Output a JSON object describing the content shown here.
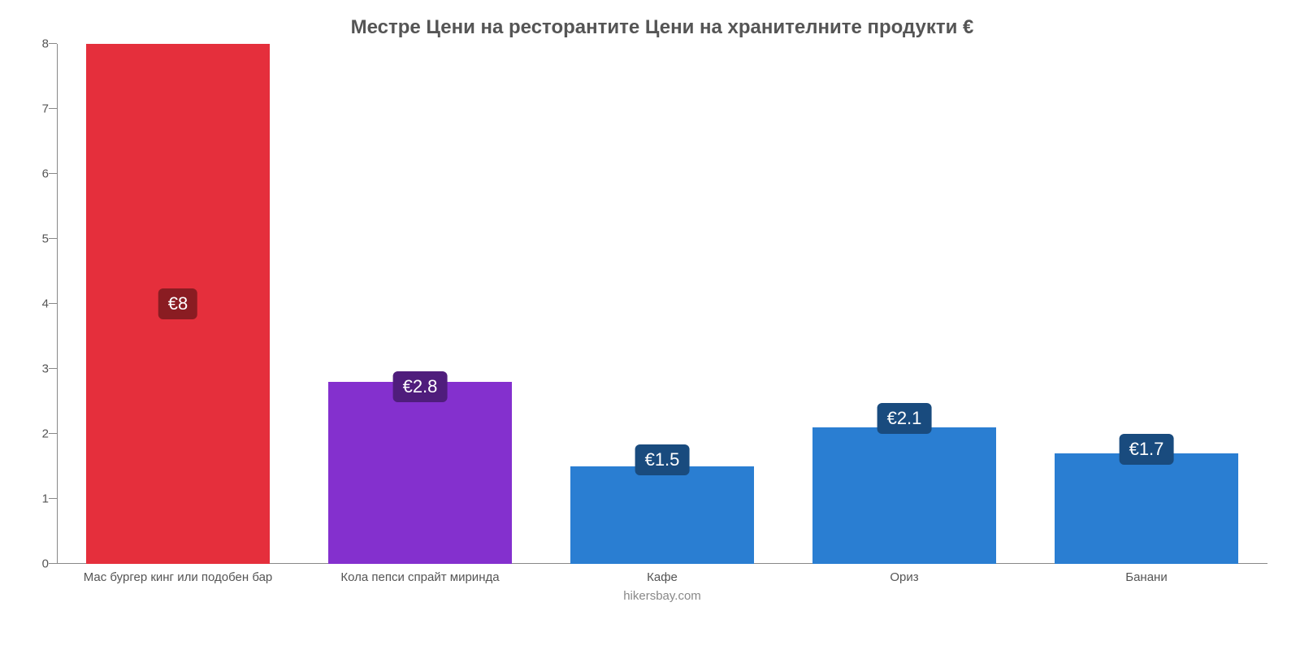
{
  "chart": {
    "type": "bar",
    "title": "Местре Цени на ресторантите Цени на хранителните продукти €",
    "title_fontsize": 24,
    "title_color": "#555555",
    "subtitle": "hikersbay.com",
    "subtitle_fontsize": 15,
    "subtitle_color": "#888888",
    "background_color": "#ffffff",
    "axis_color": "#888888",
    "ylim_min": 0,
    "ylim_max": 8,
    "ytick_step": 1,
    "ytick_fontsize": 15,
    "ytick_color": "#555555",
    "xtick_fontsize": 15,
    "xtick_color": "#555555",
    "bar_width_pct": 76,
    "categories": [
      "Мас бургер кинг или подобен бар",
      "Кола пепси спрайт миринда",
      "Кафе",
      "Ориз",
      "Банани"
    ],
    "values": [
      8,
      2.8,
      1.5,
      2.1,
      1.7
    ],
    "value_labels": [
      "€8",
      "€2.8",
      "€1.5",
      "€2.1",
      "€1.7"
    ],
    "bar_colors": [
      "#e52f3c",
      "#8430ce",
      "#2a7ed2",
      "#2a7ed2",
      "#2a7ed2"
    ],
    "badge_colors": [
      "#8a1c22",
      "#4f1d7c",
      "#194b7e",
      "#194b7e",
      "#194b7e"
    ],
    "badge_fontsize": 22,
    "badge_text_color": "#ffffff",
    "label_vpos_pct": [
      50,
      66,
      80,
      72,
      78
    ]
  }
}
